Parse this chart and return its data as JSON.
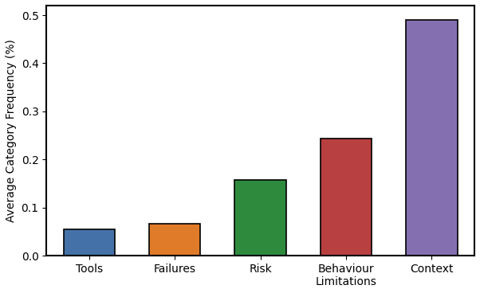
{
  "categories": [
    "Tools",
    "Failures",
    "Risk",
    "Behaviour\nLimitations",
    "Context"
  ],
  "values": [
    0.055,
    0.067,
    0.157,
    0.243,
    0.49
  ],
  "bar_colors": [
    "#4472a8",
    "#e07b2a",
    "#2e8b3e",
    "#b94040",
    "#8470b0"
  ],
  "ylabel": "Average Category Frequency (%)",
  "ylim": [
    0,
    0.52
  ],
  "yticks": [
    0.0,
    0.1,
    0.2,
    0.3,
    0.4,
    0.5
  ],
  "bar_edge_color": "black",
  "bar_edge_width": 1.2,
  "background_color": "#ffffff",
  "bar_width": 0.6
}
